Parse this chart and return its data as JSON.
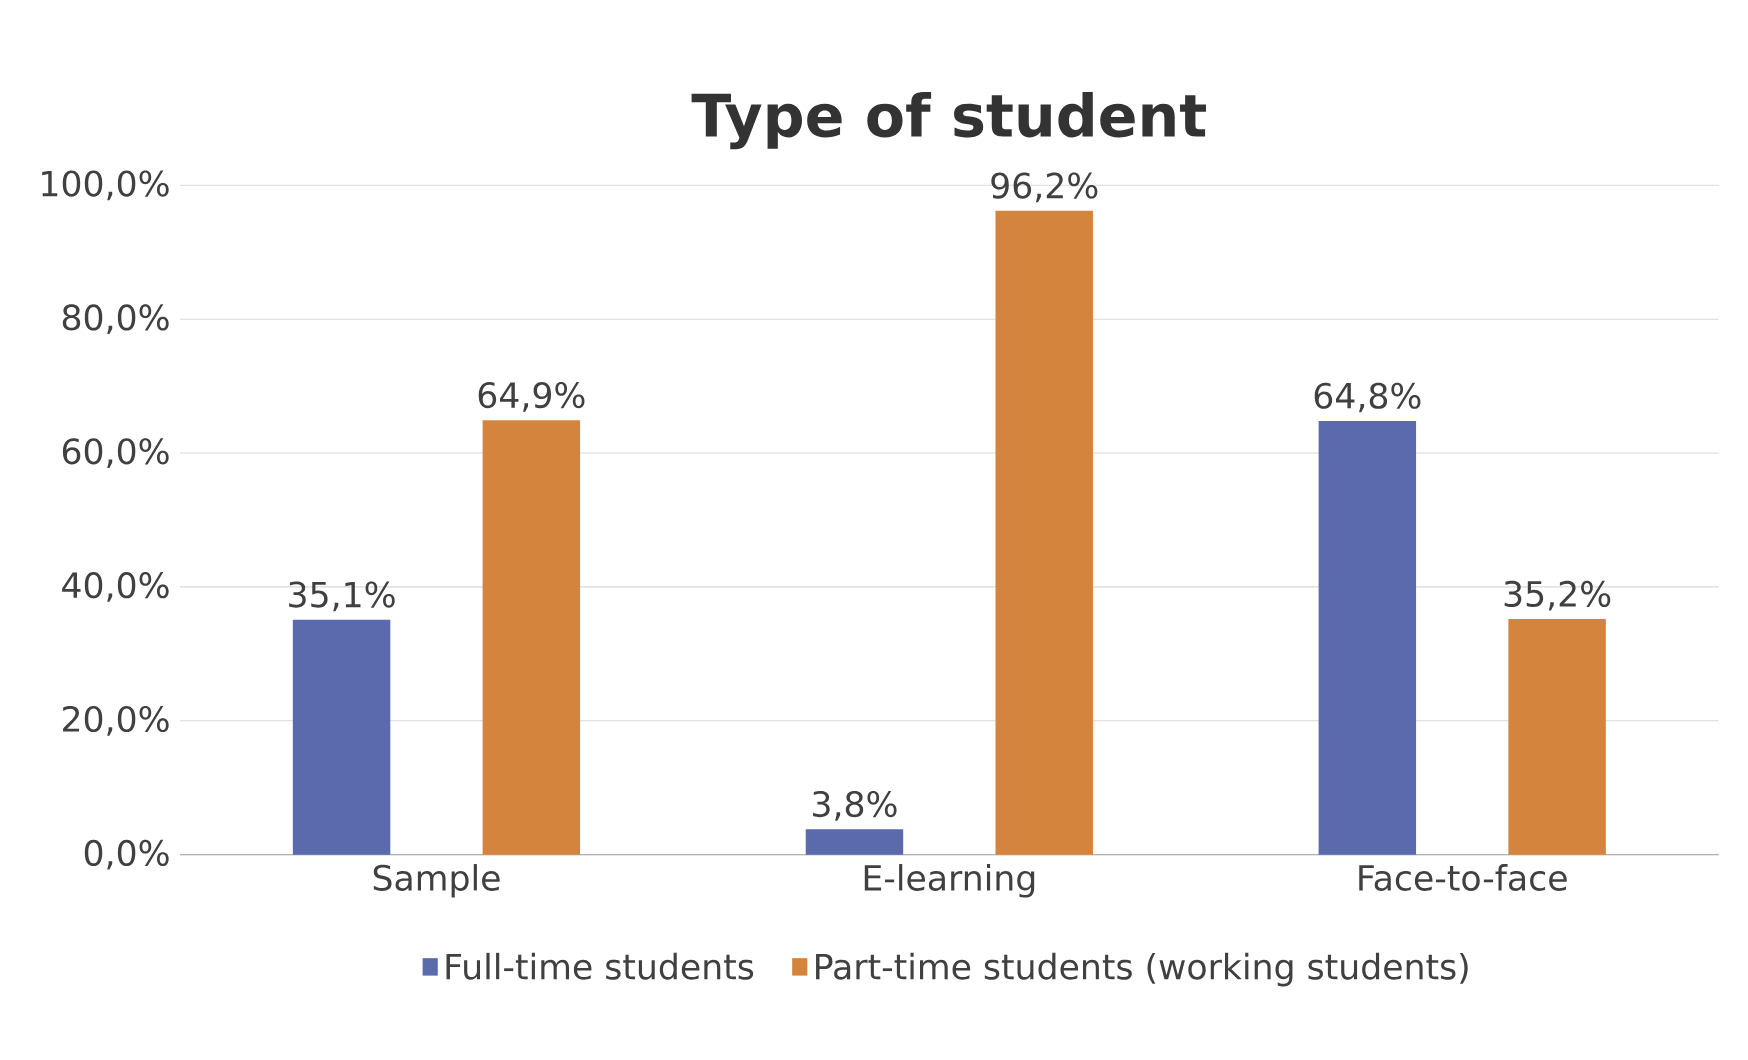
{
  "chart_data": {
    "type": "bar",
    "title": "Type of student",
    "categories": [
      "Sample",
      "E-learning",
      "Face-to-face"
    ],
    "series": [
      {
        "name": "Full-time students",
        "color": "#5b6aad",
        "values": [
          35.1,
          3.8,
          64.8
        ],
        "value_labels": [
          "35,1%",
          "3,8%",
          "64,8%"
        ]
      },
      {
        "name": "Part-time students (working students)",
        "color": "#d4843c",
        "values": [
          64.9,
          96.2,
          35.2
        ],
        "value_labels": [
          "64,9%",
          "96,2%",
          "35,2%"
        ]
      }
    ],
    "ylim": [
      0,
      100
    ],
    "yticks": [
      {
        "value": 0,
        "label": "0,0%"
      },
      {
        "value": 20,
        "label": "20,0%"
      },
      {
        "value": 40,
        "label": "40,0%"
      },
      {
        "value": 60,
        "label": "60,0%"
      },
      {
        "value": 80,
        "label": "80,0%"
      },
      {
        "value": 100,
        "label": "100,0%"
      }
    ],
    "grid": "y",
    "legend": "bottom"
  }
}
